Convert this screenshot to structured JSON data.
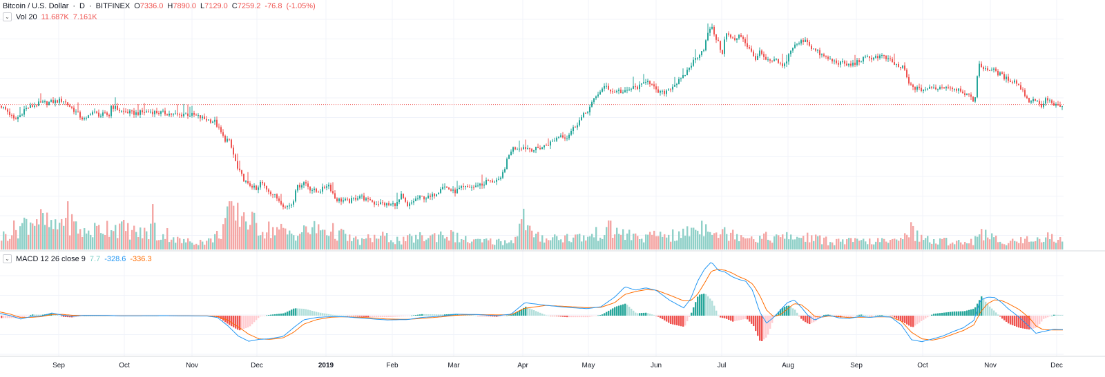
{
  "header": {
    "symbol": "Bitcoin / U.S. Dollar",
    "interval": "D",
    "exchange": "BITFINEX",
    "open_label": "O",
    "open": "7336.0",
    "high_label": "H",
    "high": "7890.0",
    "low_label": "L",
    "low": "7129.0",
    "close_label": "C",
    "close": "7259.2",
    "change": "-76.8",
    "change_pct": "(-1.05%)"
  },
  "volume_legend": {
    "toggle_glyph": "⌄",
    "label": "Vol 20",
    "value": "11.687K",
    "ma_value": "7.161K"
  },
  "macd_legend": {
    "toggle_glyph": "⌄",
    "label": "MACD 12 26 close 9",
    "hist": "7.7",
    "macd": "-328.6",
    "signal": "-336.3"
  },
  "colors": {
    "up": "#26a69a",
    "down": "#ef5350",
    "vol_up": "#8fd0c8",
    "vol_down": "#f4a6a4",
    "hist_up_strong": "#26a69a",
    "hist_up_weak": "#b2dfdb",
    "hist_down_strong": "#ef5350",
    "hist_down_weak": "#ffcdd2",
    "macd_line": "#2196f3",
    "signal_line": "#ff6d00",
    "grid": "#f0f3fa",
    "price_line": "#ef5350"
  },
  "chart_data": {
    "type": "candlestick",
    "title": "Bitcoin / U.S. Dollar · D · BITFINEX",
    "x_tick_labels": [
      "Sep",
      "Oct",
      "Nov",
      "Dec",
      "2019",
      "Feb",
      "Mar",
      "Apr",
      "May",
      "Jun",
      "Jul",
      "Aug",
      "Sep",
      "Oct",
      "Nov",
      "Dec"
    ],
    "current_price_line": 7259.2,
    "price_keyframes": {
      "day": [
        0,
        10,
        20,
        28,
        34,
        40,
        55,
        75,
        90,
        105,
        115,
        120,
        124,
        131,
        137,
        145,
        150,
        157,
        160,
        175,
        195,
        215,
        240,
        260,
        264,
        280,
        293,
        310,
        324,
        330,
        343,
        357,
        363,
        372,
        375,
        385,
        402,
        405,
        412,
        423,
        427,
        440,
        448,
        458,
        467,
        474,
        485,
        505,
        520,
        532,
        535,
        540,
        548,
        563,
        575,
        580,
        589,
        600,
        608,
        622,
        635,
        638,
        648,
        656,
        666,
        681,
        688,
        692,
        697,
        705,
        709,
        718,
        723,
        740,
        757,
        772,
        784,
        798,
        810,
        820,
        824,
        832,
        851,
        867,
        877,
        888,
        892,
        902,
        914,
        927,
        936,
        949,
        959,
        969,
        987,
        1003,
        1018,
        1028,
        1042,
        1045,
        1050,
        1063,
        1070,
        1083,
        1092,
        1100,
        1108,
        1125,
        1133,
        1145,
        1165,
        1175,
        1190,
        1205,
        1230,
        1250,
        1275,
        1282,
        1300,
        1308,
        1315,
        1330,
        1350,
        1370,
        1390,
        1410,
        1416,
        1425,
        1440,
        1455,
        1470,
        1490,
        1500,
        1505,
        1515,
        1525,
        1538
      ],
      "price": [
        7200,
        6900,
        6450,
        6700,
        7000,
        7100,
        7300,
        7400,
        7500,
        7000,
        6650,
        6500,
        6500,
        6900,
        6800,
        6700,
        6750,
        6700,
        7200,
        6900,
        6800,
        6900,
        6800,
        6700,
        6800,
        6700,
        6550,
        6400,
        5600,
        5600,
        4500,
        4000,
        4000,
        3800,
        4100,
        3900,
        3600,
        3550,
        3400,
        3500,
        3900,
        4100,
        3900,
        3800,
        3900,
        4050,
        3600,
        3550,
        3700,
        3550,
        3600,
        3500,
        3500,
        3450,
        3500,
        3700,
        3400,
        3600,
        3650,
        3650,
        3850,
        4000,
        3900,
        3800,
        3900,
        3950,
        3950,
        4050,
        4000,
        4150,
        4100,
        4150,
        4100,
        5250,
        5300,
        5200,
        5300,
        5500,
        5800,
        5700,
        5900,
        6200,
        7000,
        8000,
        8300,
        7900,
        8100,
        7900,
        8200,
        8300,
        8800,
        8000,
        7900,
        8200,
        8800,
        10000,
        11000,
        13000,
        11000,
        10700,
        12300,
        11600,
        12300,
        11000,
        10200,
        10700,
        10000,
        10000,
        9500,
        11000,
        11800,
        11000,
        10400,
        10000,
        9700,
        10200,
        10400,
        10200,
        9600,
        9500,
        8400,
        8100,
        8200,
        8300,
        8100,
        7400,
        9700,
        9500,
        9300,
        8800,
        8600,
        7400,
        7600,
        7100,
        7600,
        7200,
        7100
      ]
    },
    "macd_keyframes": {
      "day": [
        0,
        15,
        30,
        45,
        60,
        75,
        90,
        105,
        120,
        150,
        180,
        210,
        240,
        270,
        300,
        315,
        330,
        345,
        360,
        375,
        390,
        410,
        425,
        440,
        460,
        480,
        500,
        530,
        560,
        590,
        610,
        640,
        660,
        690,
        720,
        740,
        760,
        790,
        820,
        850,
        870,
        890,
        905,
        920,
        935,
        950,
        970,
        990,
        1000,
        1010,
        1020,
        1030,
        1040,
        1050,
        1060,
        1070,
        1080,
        1090,
        1100,
        1110,
        1120,
        1130,
        1140,
        1150,
        1160,
        1170,
        1180,
        1190,
        1200,
        1215,
        1230,
        1245,
        1260,
        1275,
        1290,
        1305,
        1320,
        1335,
        1350,
        1365,
        1380,
        1395,
        1410,
        1420,
        1430,
        1440,
        1450,
        1460,
        1475,
        1490,
        1500,
        1510,
        1525,
        1538
      ],
      "macd": [
        120,
        0,
        -180,
        -50,
        -20,
        140,
        30,
        -40,
        10,
        10,
        -10,
        -5,
        0,
        -10,
        -20,
        -100,
        -550,
        -1100,
        -1380,
        -1280,
        -1250,
        -1120,
        -650,
        -220,
        -90,
        -50,
        -60,
        -150,
        -230,
        -210,
        -100,
        -20,
        80,
        60,
        0,
        80,
        700,
        560,
        450,
        380,
        480,
        1000,
        1560,
        1380,
        1500,
        1370,
        820,
        420,
        900,
        1850,
        2500,
        2900,
        2450,
        2350,
        2100,
        1950,
        1850,
        1350,
        200,
        -400,
        -100,
        300,
        700,
        850,
        460,
        10,
        -240,
        -60,
        20,
        -120,
        -150,
        -40,
        -90,
        -40,
        -80,
        -500,
        -1300,
        -1400,
        -1260,
        -1100,
        -860,
        -650,
        -260,
        850,
        1000,
        980,
        720,
        370,
        -60,
        -570,
        -950,
        -860,
        -740,
        -750
      ],
      "signal": [
        200,
        80,
        -100,
        -90,
        -50,
        60,
        70,
        20,
        10,
        5,
        -5,
        -5,
        0,
        -5,
        -10,
        -50,
        -250,
        -600,
        -1000,
        -1250,
        -1280,
        -1200,
        -900,
        -450,
        -200,
        -80,
        -60,
        -100,
        -180,
        -200,
        -150,
        -60,
        20,
        60,
        40,
        50,
        400,
        550,
        500,
        430,
        450,
        700,
        1150,
        1300,
        1400,
        1380,
        1100,
        800,
        800,
        1150,
        1750,
        2400,
        2500,
        2450,
        2300,
        2100,
        1950,
        1700,
        1100,
        300,
        -50,
        50,
        350,
        650,
        600,
        300,
        -50,
        -80,
        -20,
        -60,
        -100,
        -80,
        -80,
        -60,
        -70,
        -300,
        -900,
        -1250,
        -1320,
        -1200,
        -1000,
        -800,
        -500,
        200,
        650,
        850,
        820,
        650,
        350,
        -100,
        -550,
        -750,
        -770,
        -770
      ]
    },
    "volume_keyframes": {
      "day": [
        0,
        30,
        50,
        80,
        95,
        100,
        120,
        140,
        160,
        180,
        200,
        215,
        220,
        225,
        240,
        260,
        280,
        300,
        318,
        330,
        340,
        350,
        360,
        370,
        380,
        400,
        415,
        430,
        450,
        470,
        490,
        500,
        520,
        540,
        560,
        580,
        600,
        620,
        640,
        660,
        680,
        700,
        720,
        740,
        758,
        770,
        790,
        810,
        830,
        850,
        880,
        900,
        920,
        940,
        960,
        980,
        1000,
        1020,
        1028,
        1035,
        1050,
        1070,
        1090,
        1110,
        1130,
        1150,
        1170,
        1200,
        1230,
        1260,
        1280,
        1300,
        1310,
        1330,
        1350,
        1370,
        1390,
        1410,
        1415,
        1430,
        1450,
        1470,
        1500,
        1520,
        1538
      ],
      "volume": [
        3,
        6,
        8,
        5,
        9,
        7,
        4,
        5,
        6,
        5,
        4,
        4,
        9,
        3,
        4,
        2,
        2,
        2,
        4,
        10,
        8,
        9,
        7,
        6,
        5,
        5,
        4,
        4,
        5,
        5,
        4,
        3,
        2,
        3,
        3,
        2,
        3,
        3,
        4,
        3,
        2,
        2,
        2,
        2,
        8,
        3,
        3,
        3,
        3,
        3,
        5,
        4,
        3,
        3,
        4,
        3,
        5,
        6,
        7,
        4,
        4,
        4,
        3,
        3,
        3,
        3,
        3,
        2,
        2,
        2,
        2,
        2,
        6,
        3,
        2,
        2,
        2,
        2,
        5,
        3,
        2,
        2,
        3,
        3,
        2
      ]
    },
    "volume_scale": {
      "max": 12
    }
  }
}
